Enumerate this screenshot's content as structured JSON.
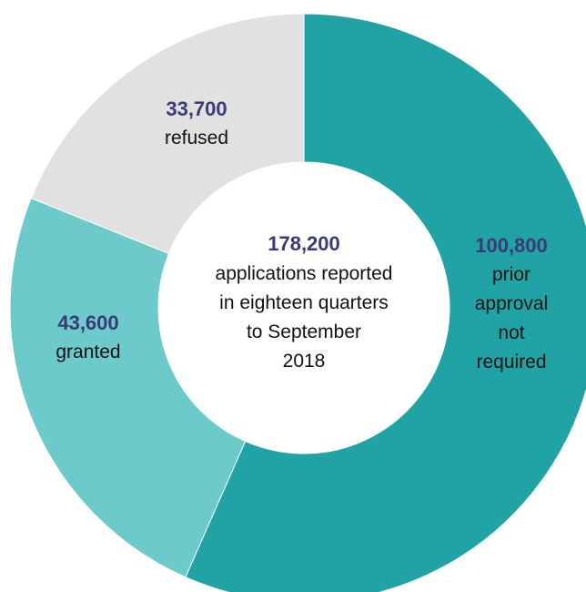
{
  "chart_data": {
    "type": "donut",
    "values": [
      100800,
      43600,
      33700
    ],
    "value_labels": [
      "100,800",
      "43,600",
      "33,700"
    ],
    "labels": [
      [
        "prior",
        "approval",
        "not",
        "required"
      ],
      [
        "granted"
      ],
      [
        "refused"
      ]
    ],
    "colors": [
      "#21a3a6",
      "#6ccaca",
      "#e2e1e1"
    ],
    "total": {
      "value": 178200,
      "label": "178,200"
    },
    "center_text": [
      "applications reported",
      "in eighteen quarters",
      "to September",
      "2018"
    ]
  }
}
